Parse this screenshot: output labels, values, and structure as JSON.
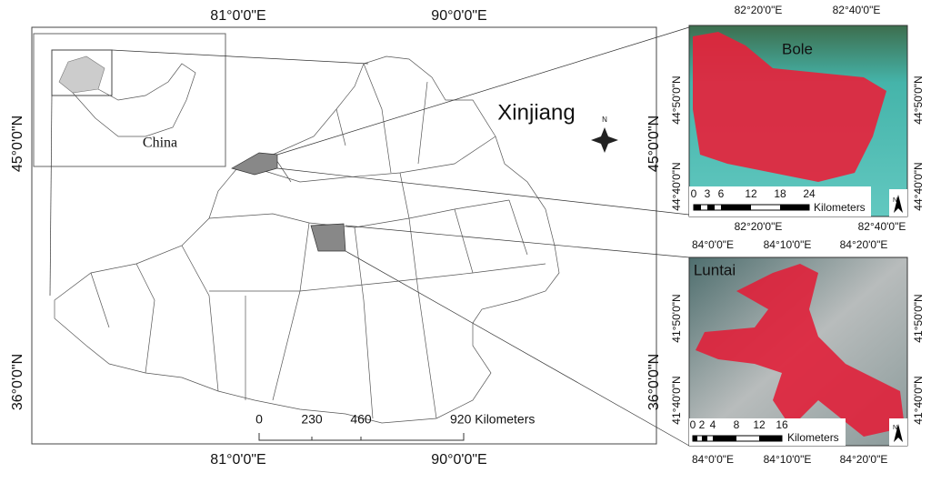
{
  "main_map": {
    "top_labels": [
      "81°0'0\"E",
      "90°0'0\"E"
    ],
    "bottom_labels": [
      "81°0'0\"E",
      "90°0'0\"E"
    ],
    "left_labels": [
      "45°0'0\"N",
      "36°0'0\"N"
    ],
    "right_labels": [
      "45°0'0\"N",
      "36°0'0\"N"
    ],
    "region_label": "Xinjiang",
    "inset_label": "China",
    "north": "N",
    "scale_labels": [
      "0",
      "230",
      "460",
      "920 Kilometers"
    ]
  },
  "bole": {
    "title": "Bole",
    "top_labels": [
      "82°20'0\"E",
      "82°40'0\"E"
    ],
    "bottom_labels": [
      "82°20'0\"E",
      "82°40'0\"E"
    ],
    "left_labels": [
      "44°50'0\"N",
      "44°40'0\"N"
    ],
    "right_labels": [
      "44°50'0\"N",
      "44°40'0\"N"
    ],
    "scale_labels": [
      "0",
      "3",
      "6",
      "12",
      "18",
      "24"
    ],
    "scale_unit": "Kilometers",
    "north": "N"
  },
  "luntai": {
    "title": "Luntai",
    "top_labels": [
      "84°0'0\"E",
      "84°10'0\"E",
      "84°20'0\"E"
    ],
    "bottom_labels": [
      "84°0'0\"E",
      "84°10'0\"E",
      "84°20'0\"E"
    ],
    "left_labels": [
      "41°50'0\"N",
      "41°40'0\"N"
    ],
    "right_labels": [
      "41°50'0\"N",
      "41°40'0\"N"
    ],
    "scale_labels": [
      "0",
      "2",
      "4",
      "8",
      "12",
      "16"
    ],
    "scale_unit": "Kilometers",
    "north": "N"
  }
}
